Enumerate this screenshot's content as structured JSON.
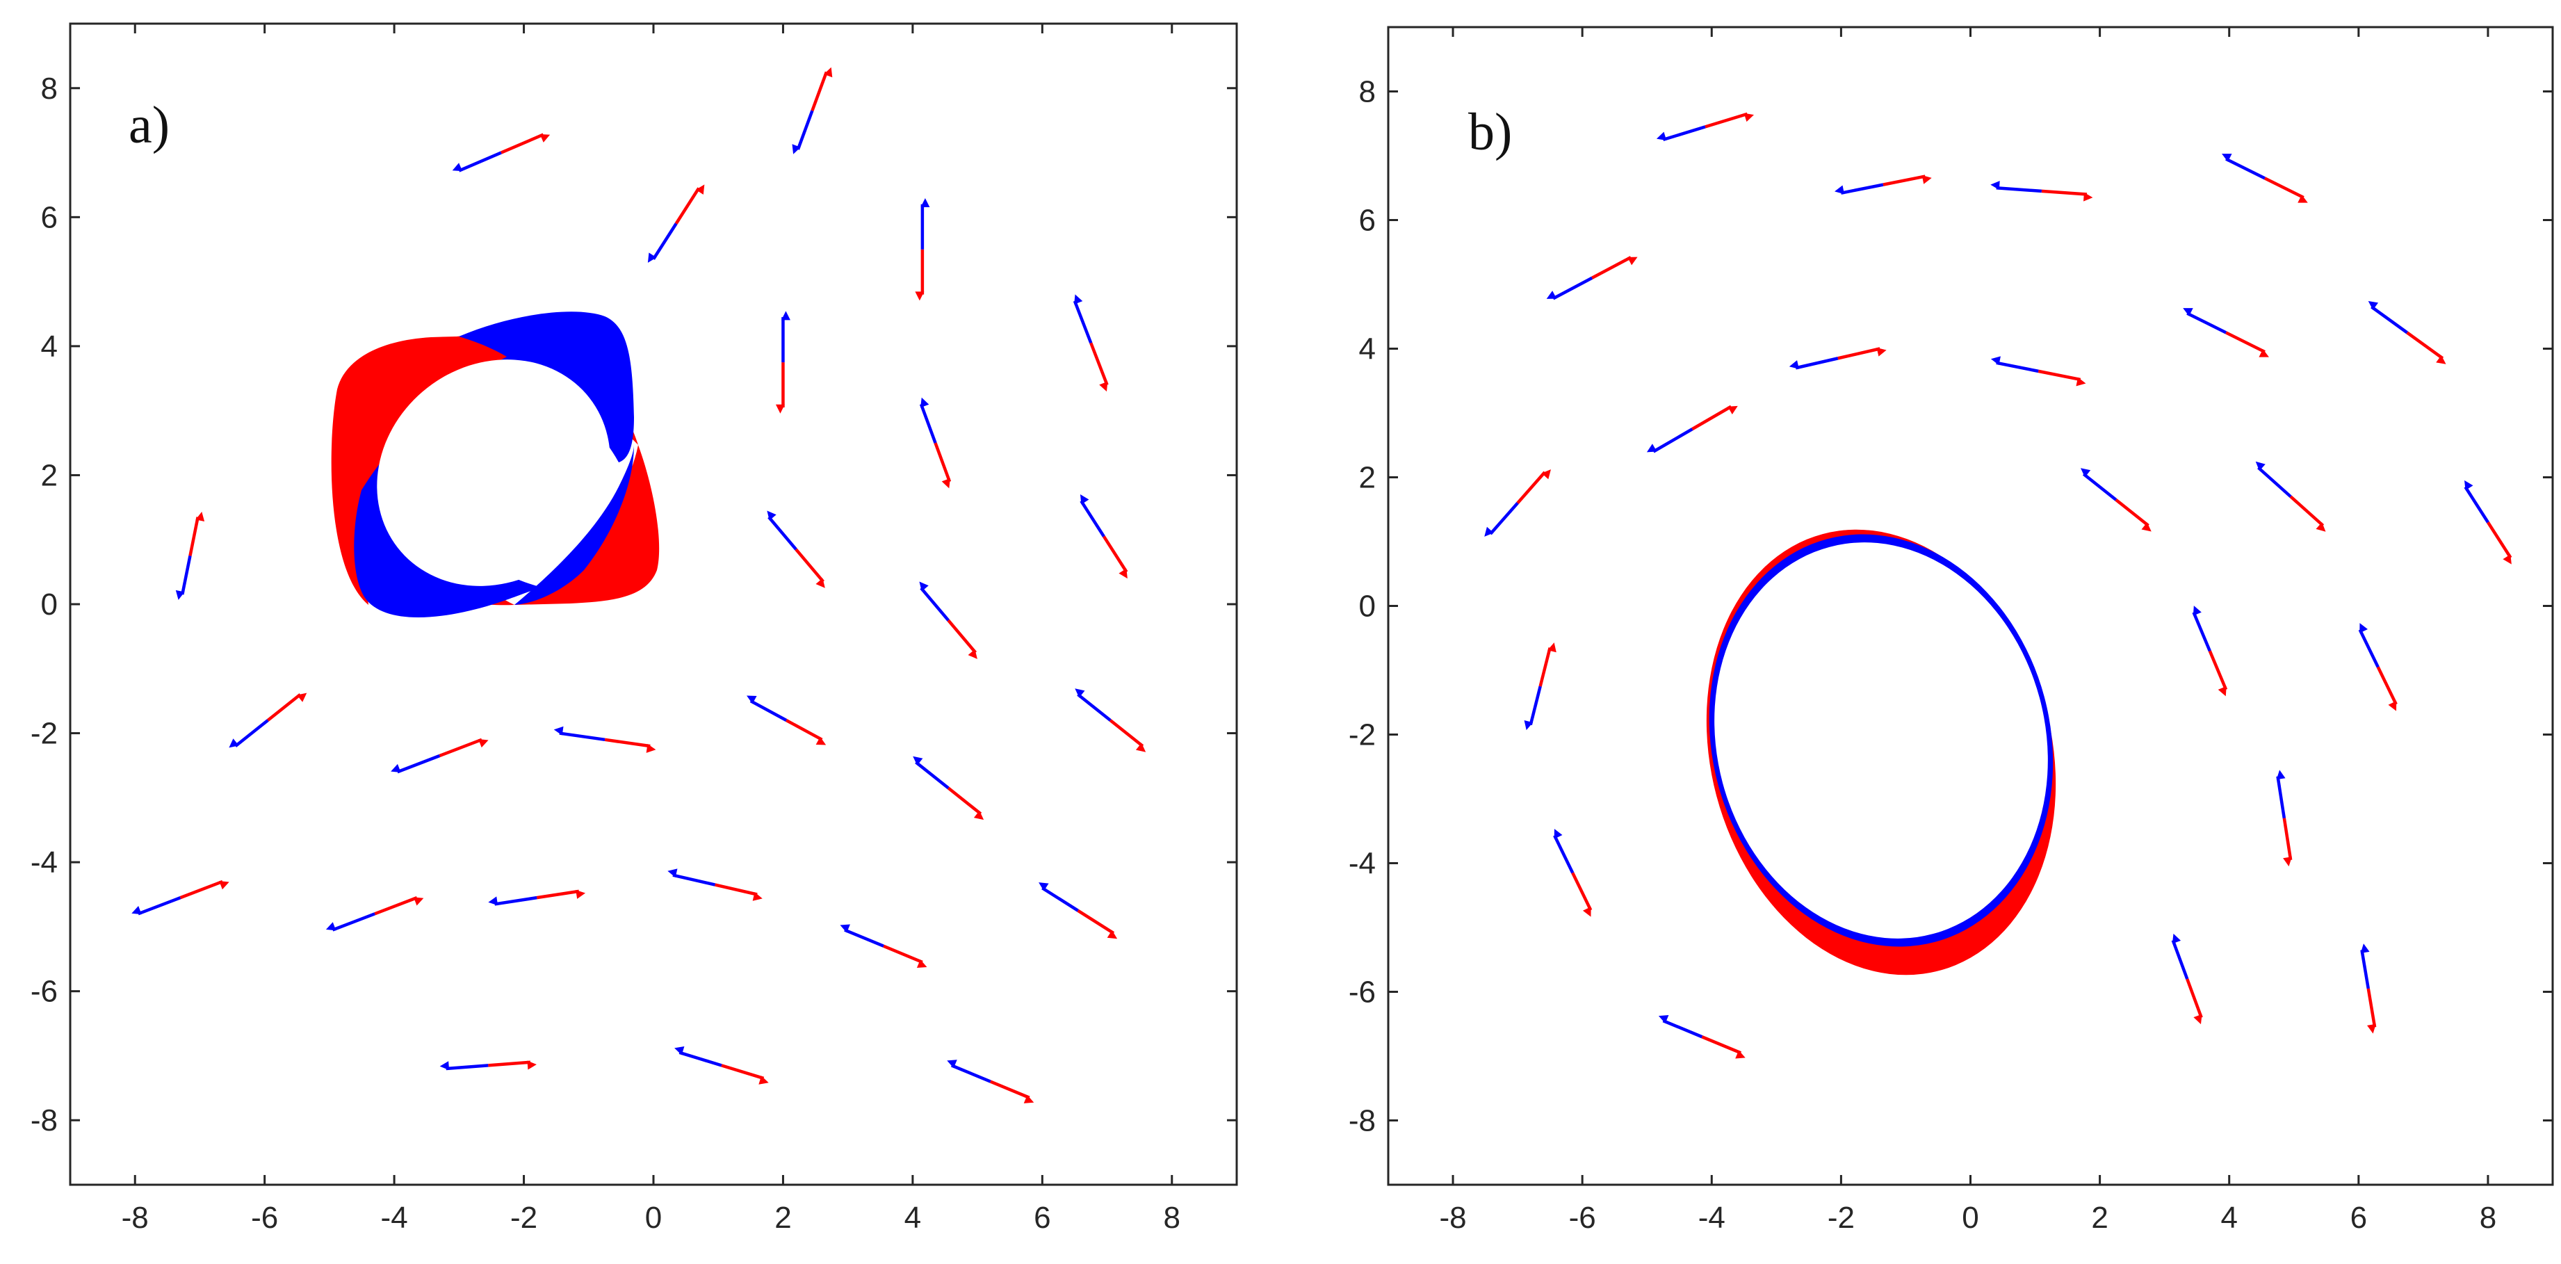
{
  "chart_data": [
    {
      "type": "vector-field",
      "panel_label": "a)",
      "xlim": [
        -9,
        9
      ],
      "ylim": [
        -9,
        9
      ],
      "xticks": [
        -8,
        -6,
        -4,
        -2,
        0,
        2,
        4,
        6,
        8
      ],
      "yticks": [
        -8,
        -6,
        -4,
        -2,
        0,
        2,
        4,
        6,
        8
      ],
      "grid": false,
      "colors": {
        "red": "#ff0000",
        "blue": "#0000ff"
      },
      "arrows": [
        {
          "x": -2.35,
          "y": 7.0,
          "dx": 0.65,
          "dy": 0.28
        },
        {
          "x": 2.45,
          "y": 7.65,
          "dx": 0.22,
          "dy": 0.6
        },
        {
          "x": 0.35,
          "y": 5.9,
          "dx": 0.35,
          "dy": 0.55
        },
        {
          "x": 4.15,
          "y": 5.5,
          "dx": 0.0,
          "dy": -0.7
        },
        {
          "x": 6.75,
          "y": 4.05,
          "dx": 0.25,
          "dy": -0.65
        },
        {
          "x": 2.0,
          "y": 3.75,
          "dx": 0.0,
          "dy": -0.7
        },
        {
          "x": 4.35,
          "y": 2.5,
          "dx": 0.22,
          "dy": -0.6
        },
        {
          "x": 6.95,
          "y": 1.05,
          "dx": 0.35,
          "dy": -0.55
        },
        {
          "x": 2.2,
          "y": 0.85,
          "dx": 0.42,
          "dy": -0.5
        },
        {
          "x": 4.55,
          "y": -0.25,
          "dx": 0.42,
          "dy": -0.5
        },
        {
          "x": -7.15,
          "y": 0.75,
          "dx": 0.12,
          "dy": 0.6
        },
        {
          "x": -5.95,
          "y": -1.8,
          "dx": 0.5,
          "dy": 0.4
        },
        {
          "x": -3.3,
          "y": -2.35,
          "dx": 0.65,
          "dy": 0.25
        },
        {
          "x": -0.75,
          "y": -2.1,
          "dx": 0.7,
          "dy": -0.1
        },
        {
          "x": 2.05,
          "y": -1.8,
          "dx": 0.55,
          "dy": -0.3
        },
        {
          "x": 4.55,
          "y": -2.85,
          "dx": 0.5,
          "dy": -0.4
        },
        {
          "x": 7.05,
          "y": -1.8,
          "dx": 0.5,
          "dy": -0.4
        },
        {
          "x": -7.3,
          "y": -4.55,
          "dx": 0.65,
          "dy": 0.25
        },
        {
          "x": -4.3,
          "y": -4.8,
          "dx": 0.65,
          "dy": 0.25
        },
        {
          "x": -1.8,
          "y": -4.55,
          "dx": 0.65,
          "dy": 0.1
        },
        {
          "x": 0.95,
          "y": -4.35,
          "dx": 0.65,
          "dy": -0.15
        },
        {
          "x": 3.55,
          "y": -5.3,
          "dx": 0.6,
          "dy": -0.25
        },
        {
          "x": 6.55,
          "y": -4.75,
          "dx": 0.55,
          "dy": -0.35
        },
        {
          "x": -2.55,
          "y": -7.15,
          "dx": 0.65,
          "dy": 0.05
        },
        {
          "x": 1.05,
          "y": -7.15,
          "dx": 0.65,
          "dy": -0.2
        },
        {
          "x": 5.2,
          "y": -7.4,
          "dx": 0.6,
          "dy": -0.25
        }
      ],
      "shape": {
        "cx": -2.35,
        "cy": 2.1,
        "note": "four-lobed red/blue inclusion"
      }
    },
    {
      "type": "vector-field",
      "panel_label": "b)",
      "xlim": [
        -9,
        9
      ],
      "ylim": [
        -9,
        9
      ],
      "xticks": [
        -8,
        -6,
        -4,
        -2,
        0,
        2,
        4,
        6,
        8
      ],
      "yticks": [
        -8,
        -6,
        -4,
        -2,
        0,
        2,
        4,
        6,
        8
      ],
      "grid": false,
      "colors": {
        "red": "#ff0000",
        "blue": "#0000ff"
      },
      "arrows": [
        {
          "x": -4.1,
          "y": 7.45,
          "dx": 0.65,
          "dy": 0.2
        },
        {
          "x": -1.35,
          "y": 6.55,
          "dx": 0.65,
          "dy": 0.13
        },
        {
          "x": 1.1,
          "y": 6.45,
          "dx": 0.7,
          "dy": -0.05
        },
        {
          "x": 4.55,
          "y": 6.65,
          "dx": 0.6,
          "dy": -0.3
        },
        {
          "x": -5.85,
          "y": 5.1,
          "dx": 0.6,
          "dy": 0.32
        },
        {
          "x": -2.05,
          "y": 3.85,
          "dx": 0.65,
          "dy": 0.15
        },
        {
          "x": 1.05,
          "y": 3.65,
          "dx": 0.65,
          "dy": -0.13
        },
        {
          "x": 3.95,
          "y": 4.25,
          "dx": 0.6,
          "dy": -0.3
        },
        {
          "x": 6.75,
          "y": 4.25,
          "dx": 0.55,
          "dy": -0.4
        },
        {
          "x": -4.3,
          "y": 2.75,
          "dx": 0.6,
          "dy": 0.35
        },
        {
          "x": 2.25,
          "y": 1.65,
          "dx": 0.5,
          "dy": -0.4
        },
        {
          "x": 4.95,
          "y": 1.7,
          "dx": 0.5,
          "dy": -0.45
        },
        {
          "x": -7.0,
          "y": 1.6,
          "dx": 0.42,
          "dy": 0.48
        },
        {
          "x": 8.0,
          "y": 1.3,
          "dx": 0.35,
          "dy": -0.55
        },
        {
          "x": -6.65,
          "y": -1.25,
          "dx": 0.15,
          "dy": 0.6
        },
        {
          "x": 3.7,
          "y": -0.7,
          "dx": 0.25,
          "dy": -0.6
        },
        {
          "x": 6.3,
          "y": -0.95,
          "dx": 0.28,
          "dy": -0.58
        },
        {
          "x": -6.15,
          "y": -4.15,
          "dx": 0.28,
          "dy": -0.58
        },
        {
          "x": 4.85,
          "y": -3.3,
          "dx": 0.1,
          "dy": -0.65
        },
        {
          "x": -4.15,
          "y": -6.7,
          "dx": 0.6,
          "dy": -0.25
        },
        {
          "x": 3.35,
          "y": -5.8,
          "dx": 0.22,
          "dy": -0.6
        },
        {
          "x": 6.15,
          "y": -5.95,
          "dx": 0.1,
          "dy": -0.6
        }
      ],
      "shape": {
        "cx": -1.2,
        "cy": -2.0,
        "note": "elliptical red/blue ring"
      }
    }
  ]
}
